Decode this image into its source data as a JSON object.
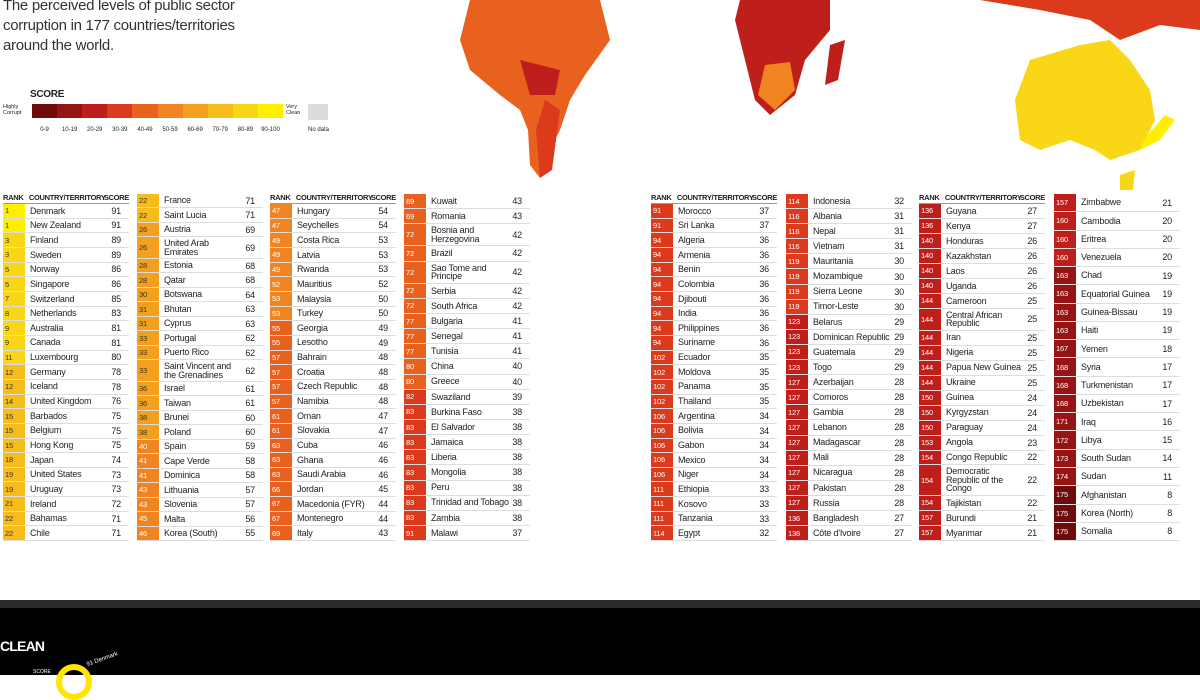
{
  "header": {
    "title": "The perceived levels of public sector corruption in 177 countries/territories around the world."
  },
  "legend": {
    "title": "SCORE",
    "low": "Highly Corrupt",
    "high": "Very Clean",
    "no_data": "No data",
    "no_data_color": "#dcdcdc",
    "bins": [
      {
        "label": "0-9",
        "color": "#6e0b0b"
      },
      {
        "label": "10-19",
        "color": "#971414"
      },
      {
        "label": "20-29",
        "color": "#bf1f1a"
      },
      {
        "label": "30-39",
        "color": "#db3a1c"
      },
      {
        "label": "40-49",
        "color": "#e8611f"
      },
      {
        "label": "50-59",
        "color": "#ef8420"
      },
      {
        "label": "60-69",
        "color": "#f3a01f"
      },
      {
        "label": "70-79",
        "color": "#f6bc1c"
      },
      {
        "label": "80-89",
        "color": "#f9d716"
      },
      {
        "label": "90-100",
        "color": "#fff000"
      }
    ]
  },
  "table": {
    "headers": [
      "RANK",
      "COUNTRY/TERRITORY",
      "SCORE"
    ],
    "columns": [
      {
        "header": true,
        "rows": [
          [
            1,
            "Denmark",
            91
          ],
          [
            1,
            "New Zealand",
            91
          ],
          [
            3,
            "Finland",
            89
          ],
          [
            3,
            "Sweden",
            89
          ],
          [
            5,
            "Norway",
            86
          ],
          [
            5,
            "Singapore",
            86
          ],
          [
            7,
            "Switzerland",
            85
          ],
          [
            8,
            "Netherlands",
            83
          ],
          [
            9,
            "Australia",
            81
          ],
          [
            9,
            "Canada",
            81
          ],
          [
            11,
            "Luxembourg",
            80
          ],
          [
            12,
            "Germany",
            78
          ],
          [
            12,
            "Iceland",
            78
          ],
          [
            14,
            "United Kingdom",
            76
          ],
          [
            15,
            "Barbados",
            75
          ],
          [
            15,
            "Belgium",
            75
          ],
          [
            15,
            "Hong Kong",
            75
          ],
          [
            18,
            "Japan",
            74
          ],
          [
            19,
            "United States",
            73
          ],
          [
            19,
            "Uruguay",
            73
          ],
          [
            21,
            "Ireland",
            72
          ],
          [
            22,
            "Bahamas",
            71
          ],
          [
            22,
            "Chile",
            71
          ]
        ]
      },
      {
        "header": false,
        "rows": [
          [
            22,
            "France",
            71
          ],
          [
            22,
            "Saint Lucia",
            71
          ],
          [
            26,
            "Austria",
            69
          ],
          [
            26,
            "United Arab Emirates",
            69
          ],
          [
            28,
            "Estonia",
            68
          ],
          [
            28,
            "Qatar",
            68
          ],
          [
            30,
            "Botswana",
            64
          ],
          [
            31,
            "Bhutan",
            63
          ],
          [
            31,
            "Cyprus",
            63
          ],
          [
            33,
            "Portugal",
            62
          ],
          [
            33,
            "Puerto Rico",
            62
          ],
          [
            33,
            "Saint Vincent and the Grenadines",
            62
          ],
          [
            36,
            "Israel",
            61
          ],
          [
            36,
            "Taiwan",
            61
          ],
          [
            38,
            "Brunei",
            60
          ],
          [
            38,
            "Poland",
            60
          ],
          [
            40,
            "Spain",
            59
          ],
          [
            41,
            "Cape Verde",
            58
          ],
          [
            41,
            "Dominica",
            58
          ],
          [
            43,
            "Lithuania",
            57
          ],
          [
            43,
            "Slovenia",
            57
          ],
          [
            45,
            "Malta",
            56
          ],
          [
            46,
            "Korea (South)",
            55
          ]
        ]
      },
      {
        "header": true,
        "rows": [
          [
            47,
            "Hungary",
            54
          ],
          [
            47,
            "Seychelles",
            54
          ],
          [
            49,
            "Costa Rica",
            53
          ],
          [
            49,
            "Latvia",
            53
          ],
          [
            49,
            "Rwanda",
            53
          ],
          [
            52,
            "Mauritius",
            52
          ],
          [
            53,
            "Malaysia",
            50
          ],
          [
            53,
            "Turkey",
            50
          ],
          [
            55,
            "Georgia",
            49
          ],
          [
            55,
            "Lesotho",
            49
          ],
          [
            57,
            "Bahrain",
            48
          ],
          [
            57,
            "Croatia",
            48
          ],
          [
            57,
            "Czech Republic",
            48
          ],
          [
            57,
            "Namibia",
            48
          ],
          [
            61,
            "Oman",
            47
          ],
          [
            61,
            "Slovakia",
            47
          ],
          [
            63,
            "Cuba",
            46
          ],
          [
            63,
            "Ghana",
            46
          ],
          [
            63,
            "Saudi Arabia",
            46
          ],
          [
            66,
            "Jordan",
            45
          ],
          [
            67,
            "Macedonia (FYR)",
            44
          ],
          [
            67,
            "Montenegro",
            44
          ],
          [
            69,
            "Italy",
            43
          ]
        ]
      },
      {
        "header": false,
        "rows": [
          [
            69,
            "Kuwait",
            43
          ],
          [
            69,
            "Romania",
            43
          ],
          [
            72,
            "Bosnia and Herzegovina",
            42
          ],
          [
            72,
            "Brazil",
            42
          ],
          [
            72,
            "Sao Tome and Principe",
            42
          ],
          [
            72,
            "Serbia",
            42
          ],
          [
            72,
            "South Africa",
            42
          ],
          [
            77,
            "Bulgaria",
            41
          ],
          [
            77,
            "Senegal",
            41
          ],
          [
            77,
            "Tunisia",
            41
          ],
          [
            80,
            "China",
            40
          ],
          [
            80,
            "Greece",
            40
          ],
          [
            82,
            "Swaziland",
            39
          ],
          [
            83,
            "Burkina Faso",
            38
          ],
          [
            83,
            "El Salvador",
            38
          ],
          [
            83,
            "Jamaica",
            38
          ],
          [
            83,
            "Liberia",
            38
          ],
          [
            83,
            "Mongolia",
            38
          ],
          [
            83,
            "Peru",
            38
          ],
          [
            83,
            "Trinidad and Tobago",
            38
          ],
          [
            83,
            "Zambia",
            38
          ],
          [
            91,
            "Malawi",
            37
          ]
        ]
      },
      {
        "header": true,
        "rows": [
          [
            91,
            "Morocco",
            37
          ],
          [
            91,
            "Sri Lanka",
            37
          ],
          [
            94,
            "Algeria",
            36
          ],
          [
            94,
            "Armenia",
            36
          ],
          [
            94,
            "Benin",
            36
          ],
          [
            94,
            "Colombia",
            36
          ],
          [
            94,
            "Djibouti",
            36
          ],
          [
            94,
            "India",
            36
          ],
          [
            94,
            "Philippines",
            36
          ],
          [
            94,
            "Suriname",
            36
          ],
          [
            102,
            "Ecuador",
            35
          ],
          [
            102,
            "Moldova",
            35
          ],
          [
            102,
            "Panama",
            35
          ],
          [
            102,
            "Thailand",
            35
          ],
          [
            106,
            "Argentina",
            34
          ],
          [
            106,
            "Bolivia",
            34
          ],
          [
            106,
            "Gabon",
            34
          ],
          [
            106,
            "Mexico",
            34
          ],
          [
            106,
            "Niger",
            34
          ],
          [
            111,
            "Ethiopia",
            33
          ],
          [
            111,
            "Kosovo",
            33
          ],
          [
            111,
            "Tanzania",
            33
          ],
          [
            114,
            "Egypt",
            32
          ]
        ]
      },
      {
        "header": false,
        "rows": [
          [
            114,
            "Indonesia",
            32
          ],
          [
            116,
            "Albania",
            31
          ],
          [
            116,
            "Nepal",
            31
          ],
          [
            116,
            "Vietnam",
            31
          ],
          [
            119,
            "Mauritania",
            30
          ],
          [
            119,
            "Mozambique",
            30
          ],
          [
            119,
            "Sierra Leone",
            30
          ],
          [
            119,
            "Timor-Leste",
            30
          ],
          [
            123,
            "Belarus",
            29
          ],
          [
            123,
            "Dominican Republic",
            29
          ],
          [
            123,
            "Guatemala",
            29
          ],
          [
            123,
            "Togo",
            29
          ],
          [
            127,
            "Azerbaijan",
            28
          ],
          [
            127,
            "Comoros",
            28
          ],
          [
            127,
            "Gambia",
            28
          ],
          [
            127,
            "Lebanon",
            28
          ],
          [
            127,
            "Madagascar",
            28
          ],
          [
            127,
            "Mali",
            28
          ],
          [
            127,
            "Nicaragua",
            28
          ],
          [
            127,
            "Pakistan",
            28
          ],
          [
            127,
            "Russia",
            28
          ],
          [
            136,
            "Bangladesh",
            27
          ],
          [
            136,
            "Côte d'Ivoire",
            27
          ]
        ]
      },
      {
        "header": true,
        "rows": [
          [
            136,
            "Guyana",
            27
          ],
          [
            136,
            "Kenya",
            27
          ],
          [
            140,
            "Honduras",
            26
          ],
          [
            140,
            "Kazakhstan",
            26
          ],
          [
            140,
            "Laos",
            26
          ],
          [
            140,
            "Uganda",
            26
          ],
          [
            144,
            "Cameroon",
            25
          ],
          [
            144,
            "Central African Republic",
            25
          ],
          [
            144,
            "Iran",
            25
          ],
          [
            144,
            "Nigeria",
            25
          ],
          [
            144,
            "Papua New Guinea",
            25
          ],
          [
            144,
            "Ukraine",
            25
          ],
          [
            150,
            "Guinea",
            24
          ],
          [
            150,
            "Kyrgyzstan",
            24
          ],
          [
            150,
            "Paraguay",
            24
          ],
          [
            153,
            "Angola",
            23
          ],
          [
            154,
            "Congo Republic",
            22
          ],
          [
            154,
            "Democratic Republic of the Congo",
            22
          ],
          [
            154,
            "Tajikistan",
            22
          ],
          [
            157,
            "Burundi",
            21
          ],
          [
            157,
            "Myanmar",
            21
          ]
        ]
      },
      {
        "header": false,
        "rows": [
          [
            157,
            "Zimbabwe",
            21
          ],
          [
            160,
            "Cambodia",
            20
          ],
          [
            160,
            "Eritrea",
            20
          ],
          [
            160,
            "Venezuela",
            20
          ],
          [
            163,
            "Chad",
            19
          ],
          [
            163,
            "Equatorial Guinea",
            19
          ],
          [
            163,
            "Guinea-Bissau",
            19
          ],
          [
            163,
            "Haiti",
            19
          ],
          [
            167,
            "Yemen",
            18
          ],
          [
            168,
            "Syria",
            17
          ],
          [
            168,
            "Turkmenistan",
            17
          ],
          [
            168,
            "Uzbekistan",
            17
          ],
          [
            171,
            "Iraq",
            16
          ],
          [
            172,
            "Libya",
            15
          ],
          [
            173,
            "South Sudan",
            14
          ],
          [
            174,
            "Sudan",
            11
          ],
          [
            175,
            "Afghanistan",
            8
          ],
          [
            175,
            "Korea (North)",
            8
          ],
          [
            175,
            "Somalia",
            8
          ]
        ]
      }
    ]
  },
  "footer": {
    "title": "CLEAN",
    "score_label": "SCORE",
    "leader": "91 Denmark"
  }
}
